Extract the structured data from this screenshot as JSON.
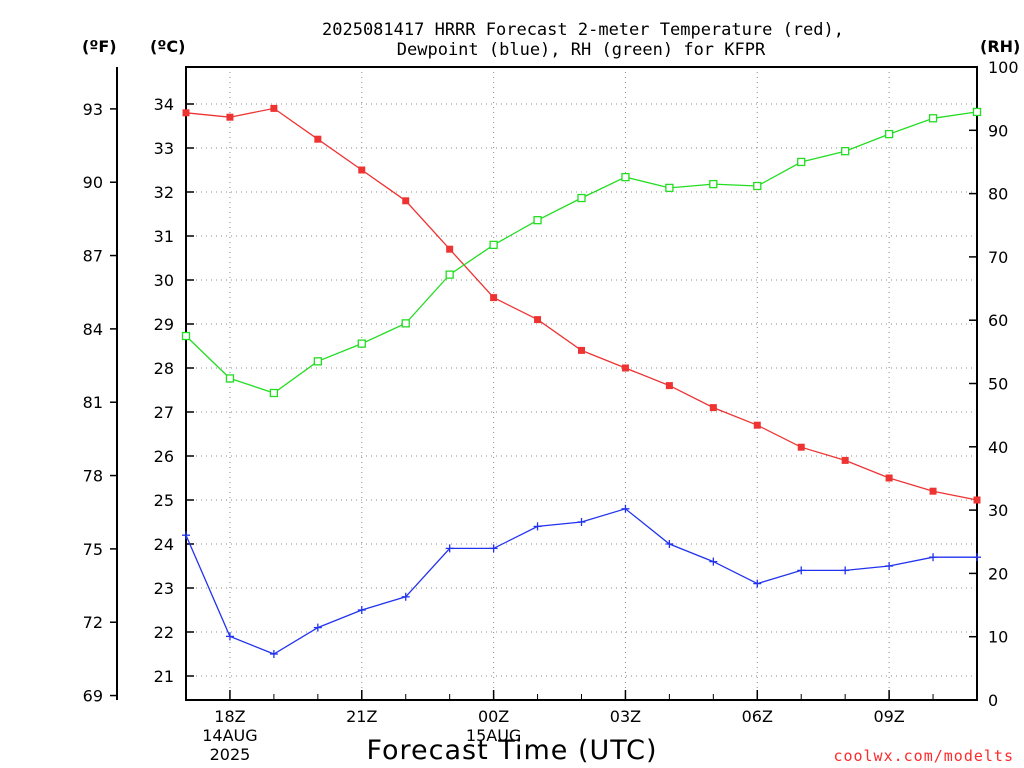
{
  "chart_data": {
    "type": "line",
    "title": [
      "2025081417 HRRR Forecast 2-meter Temperature (red),",
      "Dewpoint (blue), RH (green) for KFPR"
    ],
    "xlabel": "Forecast Time (UTC)",
    "units": {
      "fahrenheit": "(ºF)",
      "celsius": "(ºC)",
      "rh": "(RH)"
    },
    "credit": "coolwx.com/modelts",
    "x_hours": [
      17,
      18,
      19,
      20,
      21,
      22,
      23,
      24,
      25,
      26,
      27,
      28,
      29,
      30,
      31,
      32,
      33,
      34,
      35
    ],
    "x_ticks": [
      {
        "hour": 18,
        "label": "18Z",
        "date": "14AUG",
        "year": "2025"
      },
      {
        "hour": 21,
        "label": "21Z",
        "date": "",
        "year": ""
      },
      {
        "hour": 24,
        "label": "00Z",
        "date": "15AUG",
        "year": ""
      },
      {
        "hour": 27,
        "label": "03Z",
        "date": "",
        "year": ""
      },
      {
        "hour": 30,
        "label": "06Z",
        "date": "",
        "year": ""
      },
      {
        "hour": 33,
        "label": "09Z",
        "date": "",
        "year": ""
      }
    ],
    "xlim": [
      17,
      35
    ],
    "y_celsius": {
      "range": [
        20.5,
        35
      ],
      "ticks": [
        21,
        22,
        23,
        24,
        25,
        26,
        27,
        28,
        29,
        30,
        31,
        32,
        33,
        34
      ]
    },
    "y_fahrenheit": {
      "ticks": [
        69,
        72,
        75,
        78,
        81,
        84,
        87,
        90,
        93
      ]
    },
    "y_rh": {
      "range": [
        0,
        100
      ],
      "ticks": [
        0,
        10,
        20,
        30,
        40,
        50,
        60,
        70,
        80,
        90,
        100
      ]
    },
    "series": [
      {
        "key": "temperature",
        "axis": "celsius",
        "color": "#ee3333",
        "marker": "filled-square",
        "values": [
          33.8,
          33.7,
          33.9,
          33.2,
          32.5,
          31.8,
          30.7,
          29.6,
          29.1,
          28.4,
          28.0,
          27.6,
          27.1,
          26.7,
          26.2,
          25.9,
          25.5,
          25.2,
          25.0
        ]
      },
      {
        "key": "dewpoint",
        "axis": "celsius",
        "color": "#2233ee",
        "marker": "plus",
        "values": [
          24.2,
          21.9,
          21.5,
          22.1,
          22.5,
          22.8,
          23.9,
          23.9,
          24.4,
          24.5,
          24.8,
          24.0,
          23.6,
          23.1,
          23.4,
          23.4,
          23.5,
          23.7,
          23.7
        ]
      },
      {
        "key": "rh",
        "axis": "rh",
        "color": "#22dd22",
        "marker": "open-square",
        "values": [
          57.5,
          50.8,
          48.5,
          53.5,
          56.3,
          59.5,
          67.2,
          71.9,
          75.8,
          79.3,
          82.6,
          80.9,
          81.5,
          81.2,
          85.0,
          86.7,
          89.4,
          91.9,
          92.9
        ]
      }
    ],
    "grid": true
  }
}
